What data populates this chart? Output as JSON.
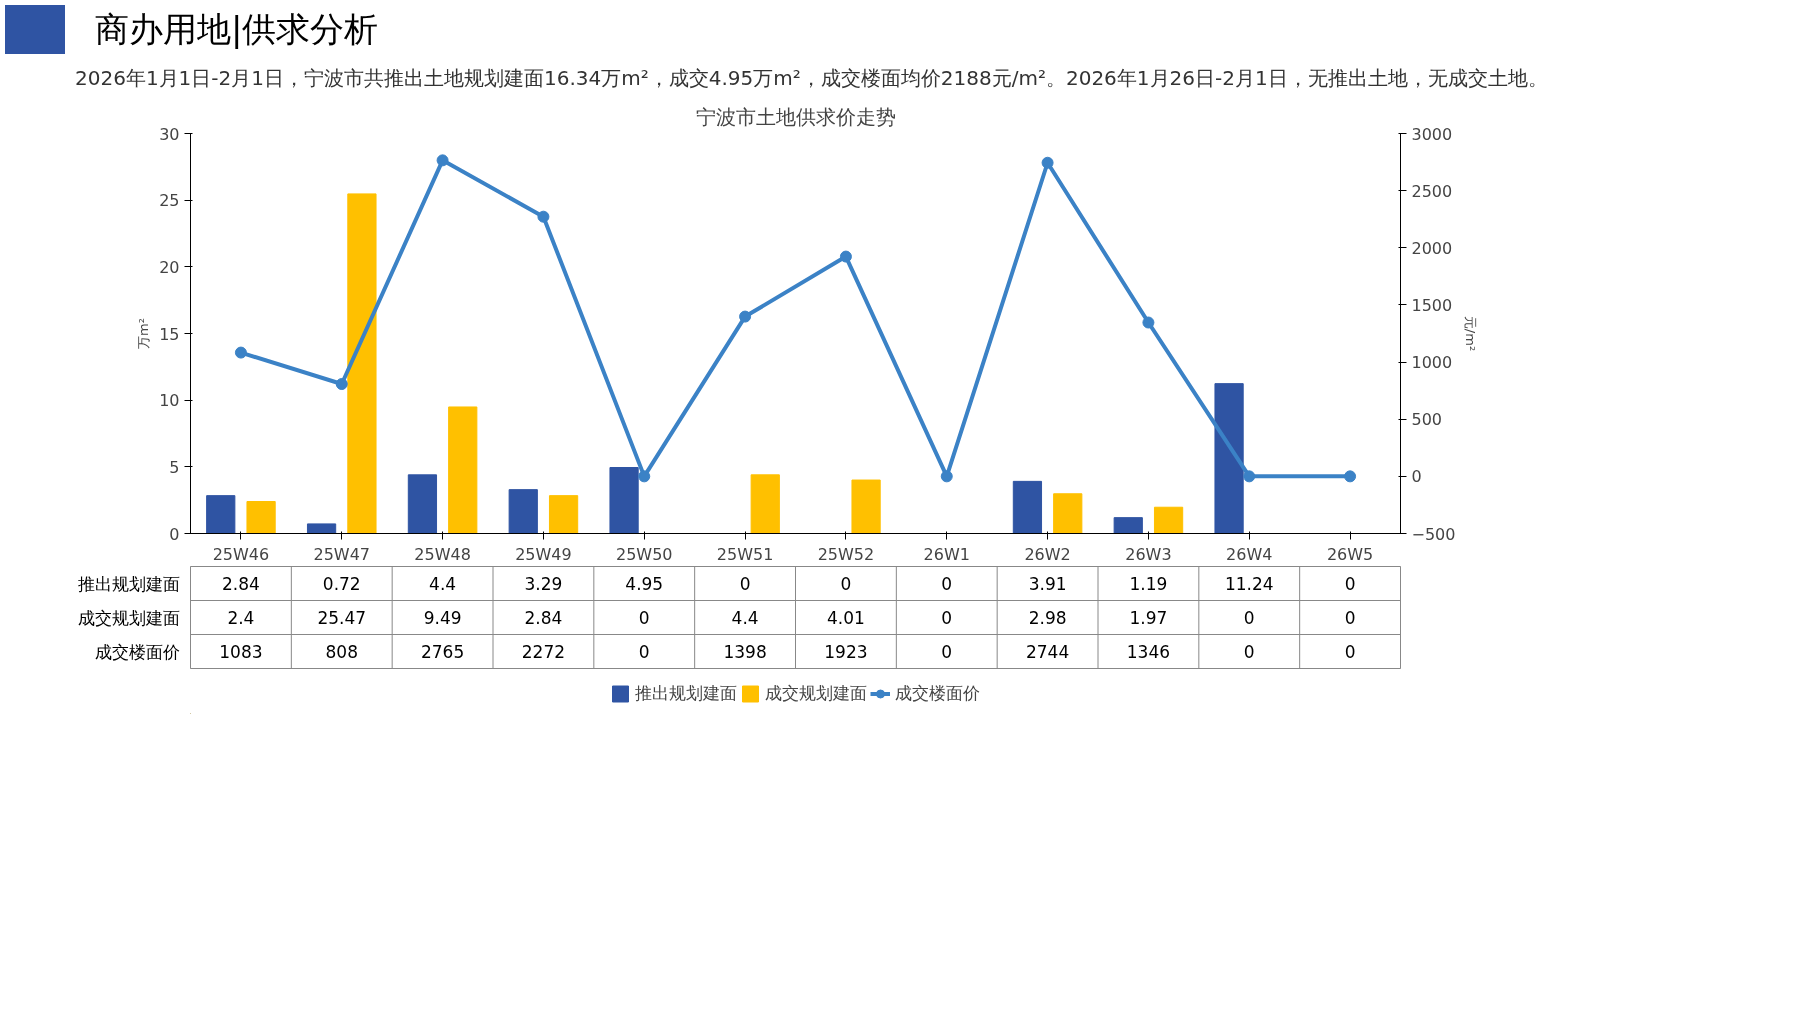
{
  "chart_data": {
    "type": "bar",
    "title": "商办用地|供求分析",
    "annotations": [
      "2026年1月1日-2月1日，宁波市共推出土地规划建面16.34万m²，成交4.95万m²，成交楼面均价2188元/m²。2026年1月26日-2月1日，无推出土地，无成交土地。"
    ],
    "subtitle": "宁波市土地供求价走势",
    "ylabel": "万m²",
    "y2label": "元/m²",
    "categories": [
      "25W46",
      "25W47",
      "25W48",
      "25W49",
      "25W50",
      "25W51",
      "25W52",
      "26W1",
      "26W2",
      "26W3",
      "26W4",
      "26W5"
    ],
    "series": [
      {
        "name": "推出规划建面",
        "color": "#2f54a3",
        "values": [
          2.84,
          0.72,
          4.4,
          3.29,
          4.95,
          0,
          0,
          0,
          3.91,
          1.19,
          11.24,
          0
        ]
      },
      {
        "name": "成交规划建面",
        "color": "#ffc000",
        "values": [
          2.4,
          25.47,
          9.49,
          2.84,
          0,
          4.4,
          4.01,
          0,
          2.98,
          1.97,
          0,
          0
        ]
      },
      {
        "name": "成交楼面价",
        "color": "#3b82c6",
        "type": "line",
        "axis": "y2",
        "marker": "circle",
        "values": [
          1083,
          808,
          2765,
          2272,
          0,
          1398,
          1923,
          0,
          2744,
          1346,
          0,
          0
        ]
      }
    ],
    "ylim": [
      0,
      30
    ],
    "yticks": [
      0,
      5,
      10,
      15,
      20,
      25,
      30
    ],
    "y2lim": [
      -500,
      3000
    ],
    "y2ticks": [
      -500,
      0,
      500,
      1000,
      1500,
      2000,
      2500,
      3000
    ],
    "data_labels": true,
    "legend": "bottom",
    "grid": false,
    "line_style": "solid"
  }
}
